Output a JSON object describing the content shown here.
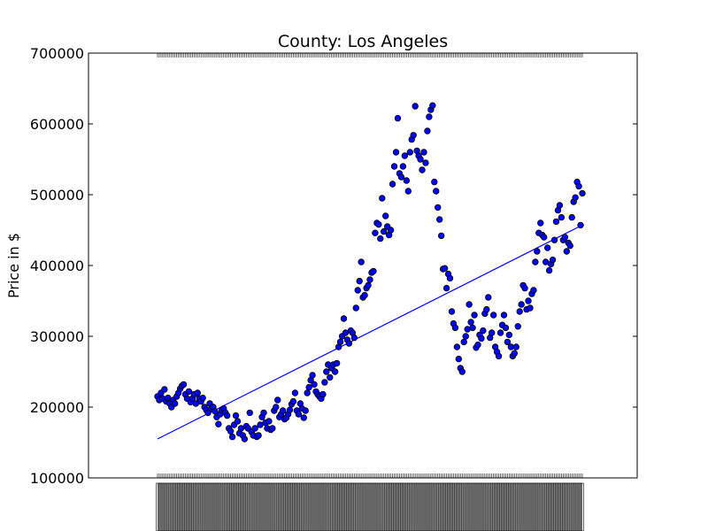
{
  "chart_data": {
    "type": "scatter",
    "title": "County: Los Angeles",
    "ylabel": "Price in $",
    "xlabel": "",
    "ylim": [
      100000,
      700000
    ],
    "yticks": [
      100000,
      200000,
      300000,
      400000,
      500000,
      600000,
      700000
    ],
    "ytick_labels": [
      "100000",
      "200000",
      "300000",
      "400000",
      "500000",
      "600000",
      "700000"
    ],
    "x_tick_labels_legible": false,
    "grid": false,
    "marker_color": "#0000ff",
    "line_color": "#0000ff",
    "series": [
      {
        "kind": "points",
        "values": [
          215000,
          210000,
          220000,
          212000,
          225000,
          208000,
          213000,
          205000,
          200000,
          210000,
          205000,
          215000,
          220000,
          226000,
          230000,
          232000,
          218000,
          212000,
          222000,
          207000,
          212000,
          218000,
          205000,
          220000,
          212000,
          208000,
          213000,
          200000,
          196000,
          192000,
          205000,
          198000,
          200000,
          194000,
          186000,
          176000,
          190000,
          196000,
          198000,
          192000,
          188000,
          170000,
          166000,
          158000,
          175000,
          188000,
          180000,
          163000,
          170000,
          160000,
          155000,
          173000,
          170000,
          192000,
          165000,
          160000,
          170000,
          158000,
          160000,
          175000,
          186000,
          192000,
          178000,
          170000,
          180000,
          168000,
          170000,
          195000,
          200000,
          210000,
          186000,
          190000,
          195000,
          183000,
          185000,
          190000,
          196000,
          204000,
          208000,
          220000,
          195000,
          190000,
          205000,
          198000,
          185000,
          195000,
          220000,
          228000,
          238000,
          245000,
          232000,
          222000,
          218000,
          215000,
          212000,
          218000,
          235000,
          250000,
          260000,
          242000,
          255000,
          260000,
          250000,
          262000,
          285000,
          292000,
          300000,
          325000,
          305000,
          295000,
          290000,
          308000,
          305000,
          298000,
          340000,
          365000,
          378000,
          405000,
          355000,
          358000,
          368000,
          372000,
          380000,
          390000,
          392000,
          446000,
          460000,
          458000,
          438000,
          495000,
          448000,
          470000,
          455000,
          443000,
          450000,
          515000,
          540000,
          560000,
          608000,
          530000,
          525000,
          540000,
          555000,
          520000,
          505000,
          560000,
          578000,
          584000,
          625000,
          562000,
          555000,
          550000,
          535000,
          560000,
          545000,
          590000,
          610000,
          620000,
          626000,
          518000,
          505000,
          482000,
          465000,
          442000,
          395000,
          396000,
          368000,
          388000,
          382000,
          335000,
          318000,
          312000,
          285000,
          268000,
          255000,
          250000,
          292000,
          300000,
          310000,
          345000,
          320000,
          312000,
          330000,
          284000,
          288000,
          302000,
          297000,
          308000,
          332000,
          338000,
          355000,
          298000,
          305000,
          330000,
          285000,
          278000,
          272000,
          305000,
          316000,
          330000,
          312000,
          292000,
          302000,
          285000,
          272000,
          276000,
          285000,
          314000,
          335000,
          345000,
          372000,
          368000,
          338000,
          350000,
          340000,
          360000,
          365000,
          405000,
          420000,
          446000,
          460000,
          443000,
          440000,
          405000,
          425000,
          393000,
          402000,
          408000,
          436000,
          462000,
          478000,
          485000,
          468000,
          436000,
          440000,
          420000,
          432000,
          428000,
          468000,
          490000,
          496000,
          518000,
          512000,
          457000,
          502000
        ]
      },
      {
        "kind": "trend",
        "values": [
          155000,
          457000
        ]
      }
    ]
  }
}
